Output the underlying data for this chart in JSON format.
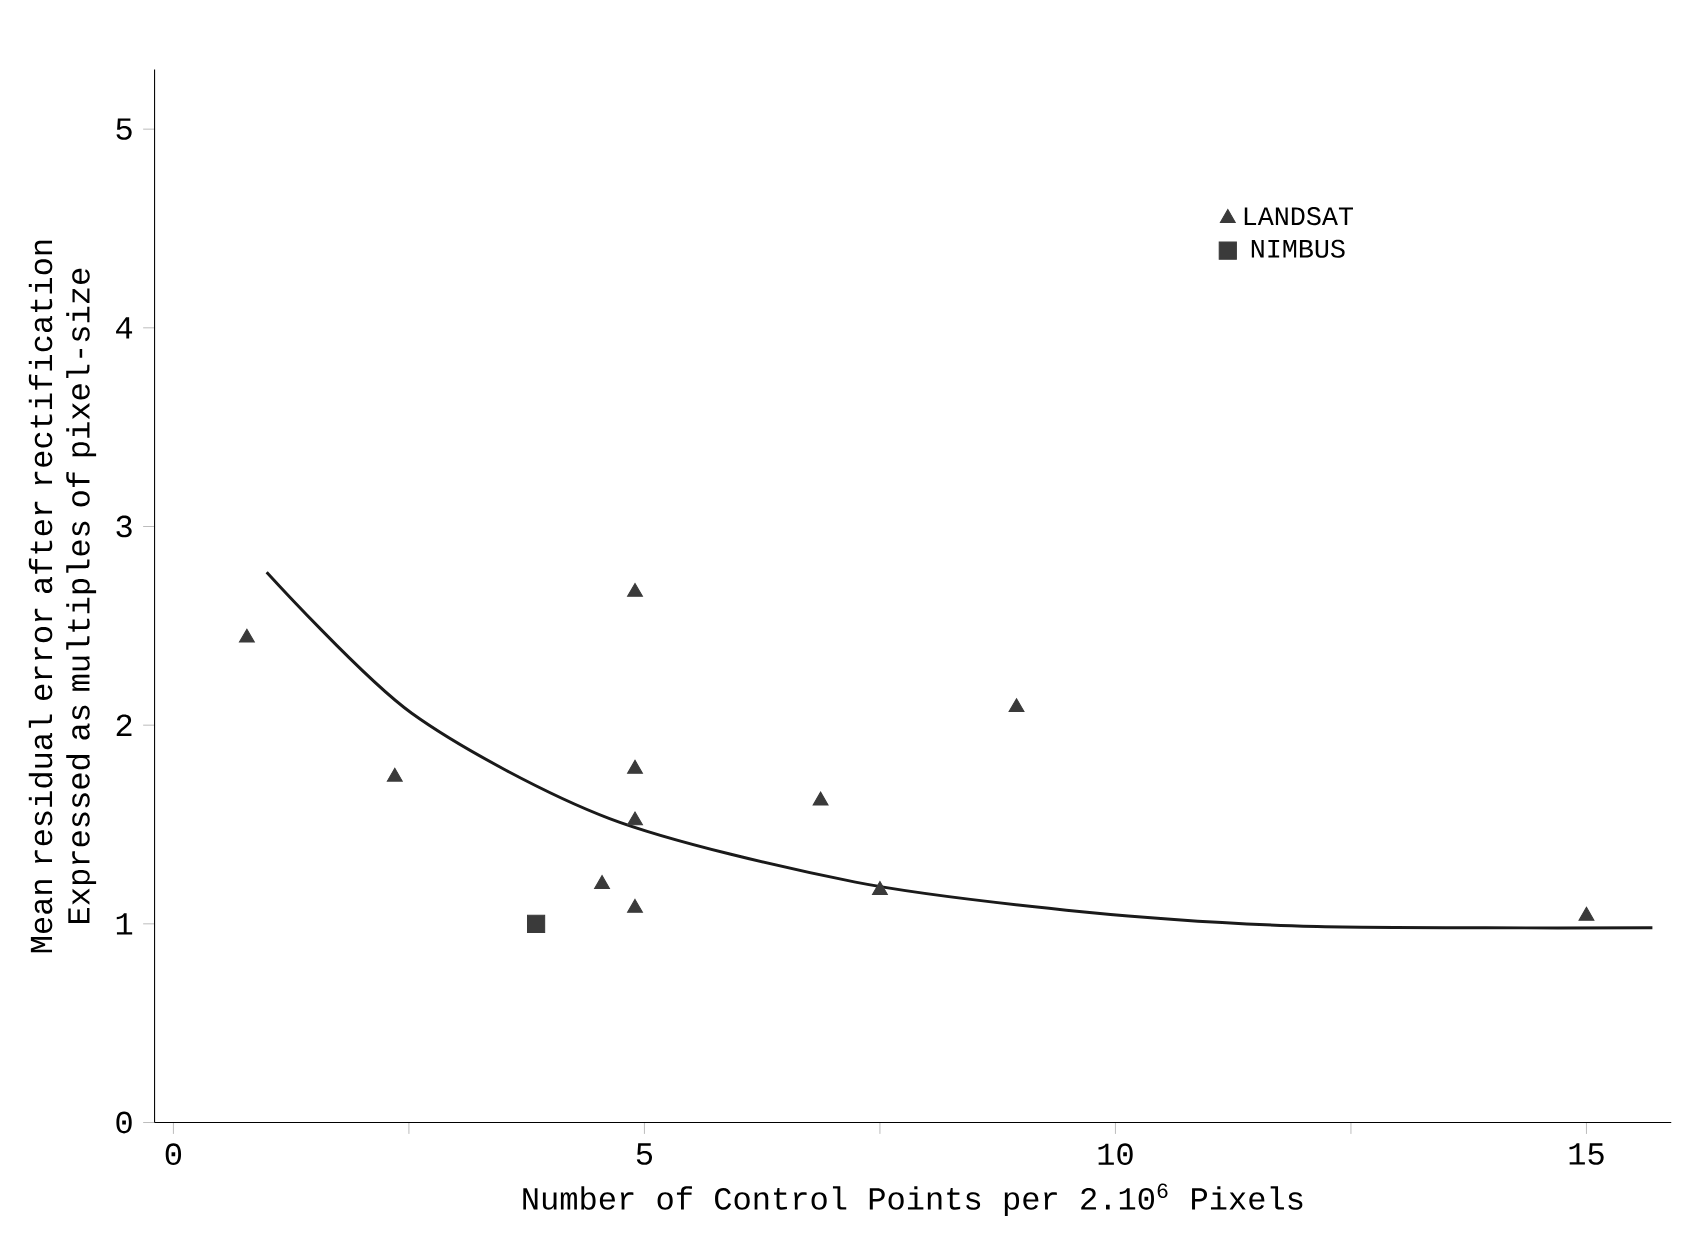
{
  "chart_data": {
    "type": "scatter",
    "xlabel": "Number of Control Points per 2.10$^{6}$ Pixels",
    "ylabel": "Mean residual error after rectification Expressed as multiples of pixel-size",
    "xlim": [
      -0.2,
      15.9
    ],
    "ylim": [
      0,
      5.3
    ],
    "xticks": [
      0,
      {
        "value": 2.5,
        "label": null
      },
      5,
      {
        "value": 7.5,
        "label": null
      },
      10,
      {
        "value": 12.5,
        "label": null
      },
      15
    ],
    "yticks": [
      0,
      1,
      2,
      3,
      4,
      5
    ],
    "grid": false,
    "legend": "top right",
    "series": [
      {
        "name": "LANDSAT",
        "color": "#3a3a3a",
        "marker": "triangle",
        "x": [
          0.78,
          2.35,
          4.9,
          4.9,
          4.9,
          4.55,
          4.9,
          6.87,
          7.5,
          8.95,
          15.0
        ],
        "values": [
          2.44,
          1.74,
          2.67,
          1.78,
          1.52,
          1.2,
          1.08,
          1.62,
          1.17,
          2.09,
          1.04
        ]
      },
      {
        "name": "NIMBUS",
        "color": "#3a3a3a",
        "marker": "square",
        "x": [
          3.85
        ],
        "values": [
          1.0
        ]
      },
      {
        "type": "line",
        "color": "#1a1a1a",
        "marker": "none",
        "x": [
          0.99,
          2.53,
          4.63,
          7.24,
          9.67,
          11.87,
          13.93,
          15.7
        ],
        "values": [
          2.77,
          2.06,
          1.53,
          1.21,
          1.06,
          0.99,
          0.98,
          0.98
        ]
      }
    ]
  }
}
